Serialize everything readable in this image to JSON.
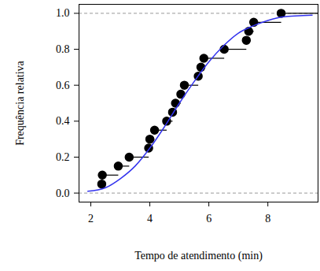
{
  "chart_data": {
    "type": "ecdf",
    "x_label": "Tempo de atendimento (min)",
    "y_label": "Frequência relativa",
    "xlim": [
      1.6,
      9.7
    ],
    "ylim": [
      -0.05,
      1.05
    ],
    "xticks": [
      2,
      4,
      6,
      8
    ],
    "yticks": [
      {
        "value": 0,
        "label": "0.0"
      },
      0.2,
      0.4,
      0.6,
      0.8,
      {
        "value": 1,
        "label": "1.0"
      }
    ],
    "hlines": [
      0,
      1
    ],
    "series": [
      {
        "type": "step",
        "color": "#000000",
        "marker": "circle",
        "x": [
          2.37,
          2.39,
          2.93,
          3.3,
          3.96,
          4.0,
          4.16,
          4.57,
          4.77,
          4.87,
          5.05,
          5.17,
          5.64,
          5.73,
          5.83,
          6.52,
          7.27,
          7.35,
          7.52,
          8.45
        ],
        "values": [
          0.05,
          0.1,
          0.15,
          0.2,
          0.25,
          0.3,
          0.35,
          0.4,
          0.45,
          0.5,
          0.55,
          0.6,
          0.65,
          0.7,
          0.75,
          0.8,
          0.85,
          0.9,
          0.95,
          1.0
        ]
      },
      {
        "type": "line",
        "color": "#3333ee",
        "line_style": "solid",
        "x": [
          1.9,
          2.5,
          3.0,
          3.5,
          4.0,
          4.5,
          5.0,
          5.5,
          6.0,
          6.5,
          7.0,
          7.5,
          8.0,
          8.5,
          9.5
        ],
        "values": [
          0.01,
          0.03,
          0.08,
          0.15,
          0.25,
          0.37,
          0.5,
          0.62,
          0.73,
          0.82,
          0.89,
          0.93,
          0.96,
          0.98,
          0.99
        ]
      }
    ]
  }
}
